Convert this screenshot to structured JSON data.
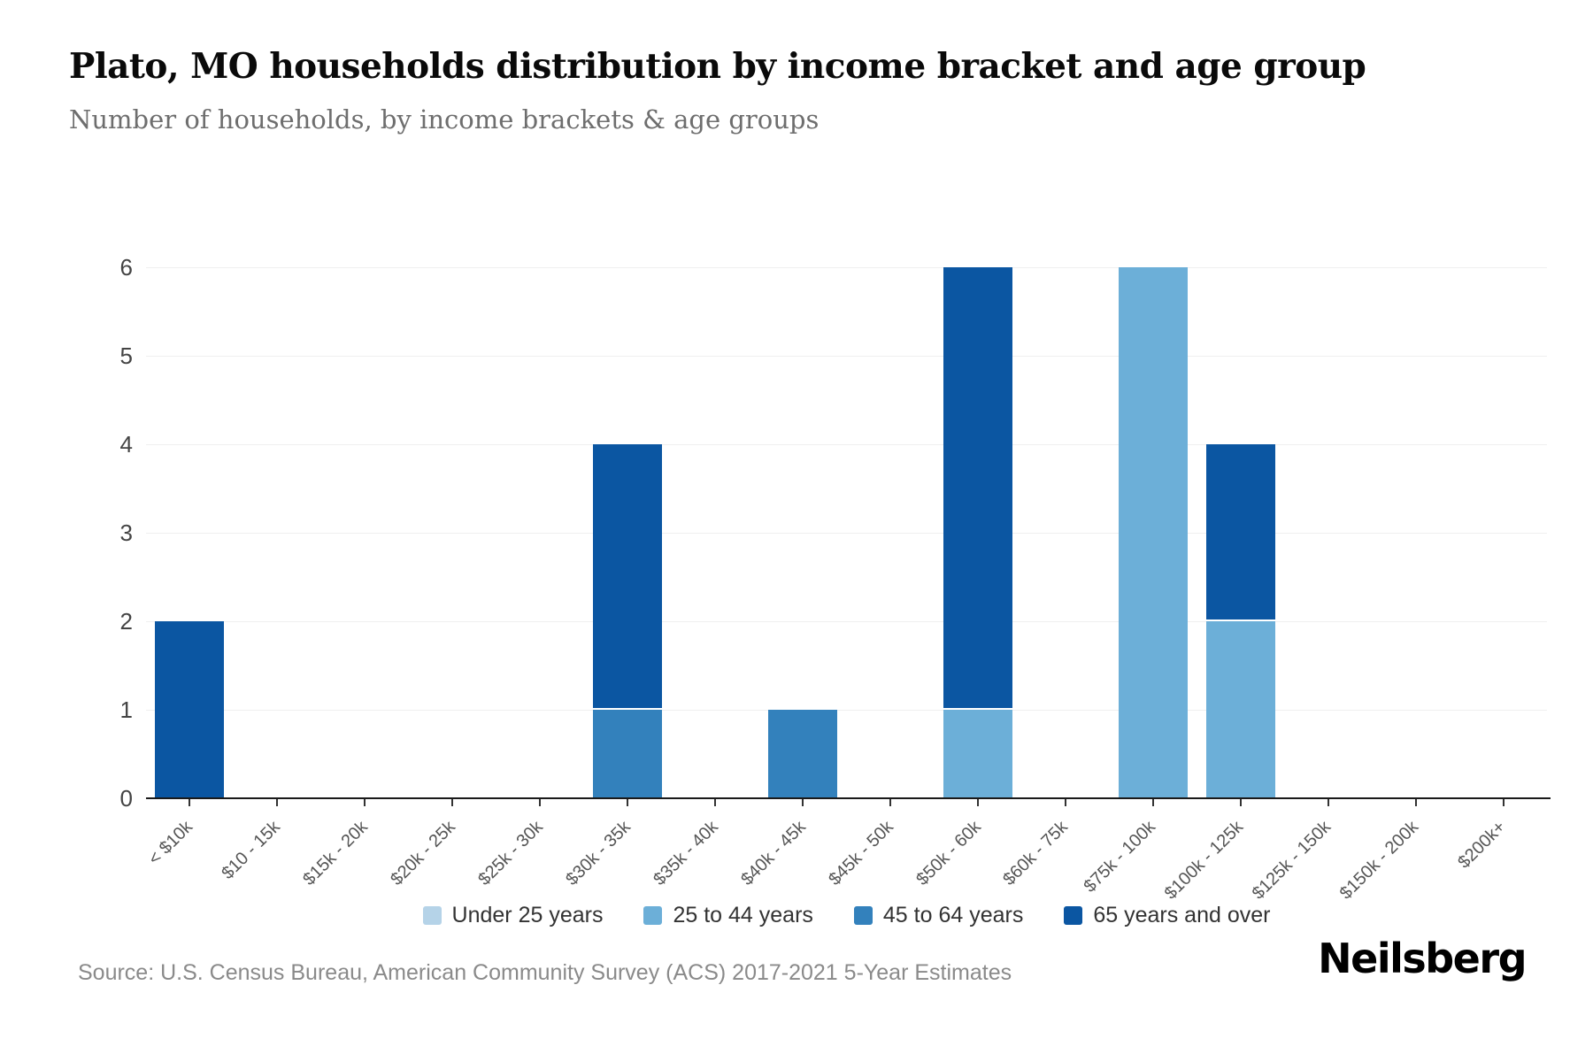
{
  "header": {
    "title": "Plato, MO households distribution by income bracket and age group",
    "subtitle": "Number of households, by income brackets & age groups"
  },
  "footer": {
    "source": "Source: U.S. Census Bureau, American Community Survey (ACS) 2017-2021 5-Year Estimates",
    "brand": "Neilsberg"
  },
  "colors": {
    "axis": "#1a1a1a",
    "grid": "#f0f0f0",
    "y_label": "#444444",
    "x_label": "#555555",
    "legend_text": "#333333",
    "tick": "#333333",
    "segment_divider": "#ffffff"
  },
  "chart_data": {
    "type": "bar",
    "stacked": true,
    "title": "Plato, MO households distribution by income bracket and age group",
    "subtitle": "Number of households, by income brackets & age groups",
    "xlabel": "",
    "ylabel": "",
    "categories": [
      "< $10k",
      "$10 - 15k",
      "$15k - 20k",
      "$20k - 25k",
      "$25k - 30k",
      "$30k - 35k",
      "$35k - 40k",
      "$40k - 45k",
      "$45k - 50k",
      "$50k - 60k",
      "$60k - 75k",
      "$75k - 100k",
      "$100k - 125k",
      "$125k - 150k",
      "$150k - 200k",
      "$200k+"
    ],
    "series": [
      {
        "name": "Under 25 years",
        "color": "#b5d3e8",
        "values": [
          0,
          0,
          0,
          0,
          0,
          0,
          0,
          0,
          0,
          0,
          0,
          0,
          0,
          0,
          0,
          0
        ]
      },
      {
        "name": "25 to 44 years",
        "color": "#6cafd8",
        "values": [
          0,
          0,
          0,
          0,
          0,
          0,
          0,
          0,
          0,
          1,
          0,
          6,
          2,
          0,
          0,
          0
        ]
      },
      {
        "name": "45 to 64 years",
        "color": "#3381bc",
        "values": [
          0,
          0,
          0,
          0,
          0,
          1,
          0,
          1,
          0,
          0,
          0,
          0,
          0,
          0,
          0,
          0
        ]
      },
      {
        "name": "65 years and over",
        "color": "#0b56a2",
        "values": [
          2,
          0,
          0,
          0,
          0,
          3,
          0,
          0,
          0,
          5,
          0,
          0,
          2,
          0,
          0,
          0
        ]
      }
    ],
    "yticks": [
      0,
      1,
      2,
      3,
      4,
      5,
      6
    ],
    "ylim": [
      0,
      6
    ],
    "grid": true,
    "legend_position": "bottom"
  }
}
